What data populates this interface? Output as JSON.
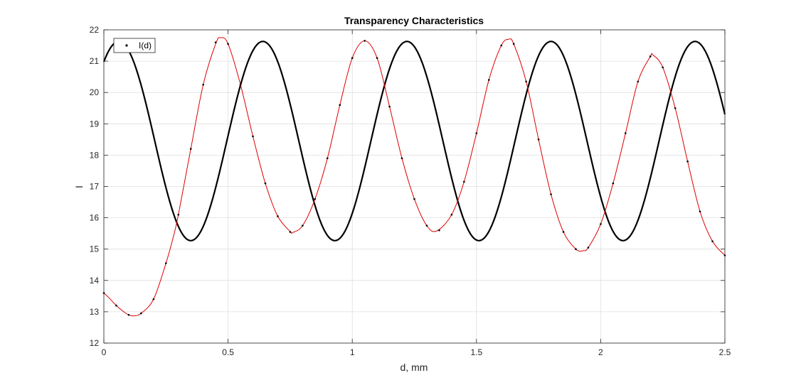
{
  "chart_data": {
    "type": "line",
    "title": "Transparency Characteristics",
    "xlabel": "d, mm",
    "ylabel": "I",
    "xlim": [
      0,
      2.5
    ],
    "ylim": [
      12,
      22
    ],
    "xticks": [
      0,
      0.5,
      1,
      1.5,
      2,
      2.5
    ],
    "xtick_labels": [
      "0",
      "0.5",
      "1",
      "1.5",
      "2",
      "2.5"
    ],
    "yticks": [
      12,
      13,
      14,
      15,
      16,
      17,
      18,
      19,
      20,
      21,
      22
    ],
    "ytick_labels": [
      "12",
      "13",
      "14",
      "15",
      "16",
      "17",
      "18",
      "19",
      "20",
      "21",
      "22"
    ],
    "grid": true,
    "legend": {
      "position": "top-left",
      "entries": [
        "I(d)"
      ]
    },
    "series": [
      {
        "name": "I(d)",
        "color": "#000000",
        "style": "dots",
        "x": [
          0,
          0.05,
          0.1,
          0.15,
          0.2,
          0.25,
          0.3,
          0.35,
          0.4,
          0.45,
          0.5,
          0.55,
          0.6,
          0.65,
          0.7,
          0.75,
          0.8,
          0.85,
          0.9,
          0.95,
          1.0,
          1.05,
          1.1,
          1.15,
          1.2,
          1.25,
          1.3,
          1.35,
          1.4,
          1.45,
          1.5,
          1.55,
          1.6,
          1.65,
          1.7,
          1.75,
          1.8,
          1.85,
          1.9,
          1.95,
          2.0,
          2.05,
          2.1,
          2.15,
          2.2,
          2.25,
          2.3,
          2.35,
          2.4,
          2.45,
          2.5
        ],
        "y": [
          13.6,
          13.2,
          12.9,
          12.95,
          13.4,
          14.55,
          16.1,
          18.2,
          20.25,
          21.6,
          21.55,
          20.25,
          18.6,
          17.1,
          16.05,
          15.55,
          15.75,
          16.6,
          17.9,
          19.6,
          21.1,
          21.65,
          21.1,
          19.55,
          17.9,
          16.6,
          15.75,
          15.6,
          16.1,
          17.15,
          18.7,
          20.4,
          21.5,
          21.55,
          20.35,
          18.5,
          16.75,
          15.55,
          15.0,
          15.05,
          15.8,
          17.1,
          18.7,
          20.35,
          21.15,
          20.8,
          19.5,
          17.8,
          16.2,
          15.25,
          14.8
        ]
      },
      {
        "name": "",
        "color": "#dd0000",
        "style": "thin-line",
        "x": [
          0,
          0.02,
          0.05,
          0.08,
          0.1,
          0.12,
          0.15,
          0.2,
          0.25,
          0.28,
          0.3,
          0.35,
          0.4,
          0.45,
          0.47,
          0.5,
          0.55,
          0.6,
          0.65,
          0.7,
          0.75,
          0.76,
          0.8,
          0.85,
          0.9,
          0.95,
          1.0,
          1.05,
          1.1,
          1.15,
          1.2,
          1.25,
          1.3,
          1.34,
          1.4,
          1.45,
          1.5,
          1.55,
          1.6,
          1.63,
          1.65,
          1.7,
          1.75,
          1.8,
          1.85,
          1.9,
          1.93,
          1.95,
          2.0,
          2.05,
          2.1,
          2.15,
          2.2,
          2.21,
          2.25,
          2.3,
          2.35,
          2.4,
          2.45,
          2.5
        ],
        "y": [
          13.6,
          13.45,
          13.2,
          13.0,
          12.9,
          12.87,
          12.95,
          13.4,
          14.55,
          15.4,
          16.1,
          18.2,
          20.25,
          21.55,
          21.75,
          21.55,
          20.25,
          18.6,
          17.1,
          16.05,
          15.56,
          15.53,
          15.75,
          16.6,
          17.9,
          19.6,
          21.1,
          21.65,
          21.1,
          19.55,
          17.9,
          16.6,
          15.75,
          15.58,
          16.1,
          17.15,
          18.7,
          20.4,
          21.5,
          21.7,
          21.55,
          20.35,
          18.5,
          16.75,
          15.55,
          15.0,
          14.95,
          15.05,
          15.8,
          17.1,
          18.7,
          20.35,
          21.15,
          21.2,
          20.8,
          19.5,
          17.8,
          16.2,
          15.25,
          14.8
        ]
      },
      {
        "name": "",
        "color": "#000000",
        "style": "thick-line",
        "formula": {
          "mean": 18.45,
          "amplitude": 3.18,
          "period": 0.58,
          "phase": 0.06
        }
      }
    ]
  }
}
